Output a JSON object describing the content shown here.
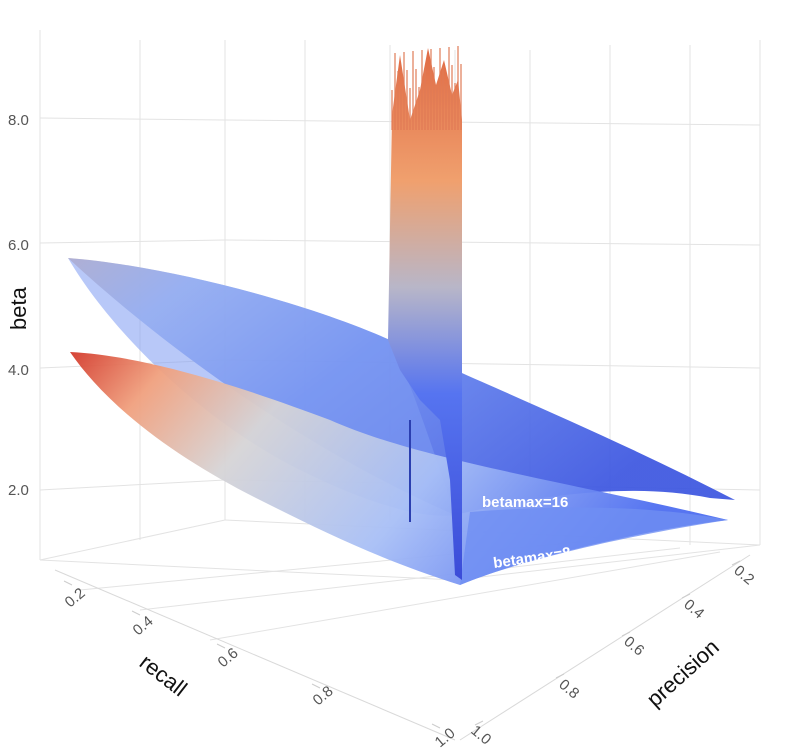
{
  "chart_data": {
    "type": "surface",
    "z_axis": {
      "title": "beta",
      "ticks": [
        "2.0",
        "4.0",
        "6.0",
        "8.0"
      ]
    },
    "x_axis": {
      "title": "recall",
      "ticks": [
        "0.2",
        "0.4",
        "0.6",
        "0.8",
        "1.0"
      ]
    },
    "y_axis": {
      "title": "precision",
      "ticks": [
        "0.2",
        "0.4",
        "0.6",
        "0.8",
        "1.0"
      ]
    },
    "series": [
      {
        "name": "betamax=16",
        "label": "betamax=16",
        "beta_range": [
          1.0,
          9.2
        ]
      },
      {
        "name": "betamax=8",
        "label": "betamax=8",
        "beta_range": [
          1.0,
          4.2
        ]
      }
    ],
    "colorscale": [
      "#3b4cc0",
      "#7396f5",
      "#b0cbfc",
      "#dcdddd",
      "#f6b69a",
      "#e7775d",
      "#b40426"
    ],
    "grid": true,
    "background": "#ffffff"
  }
}
